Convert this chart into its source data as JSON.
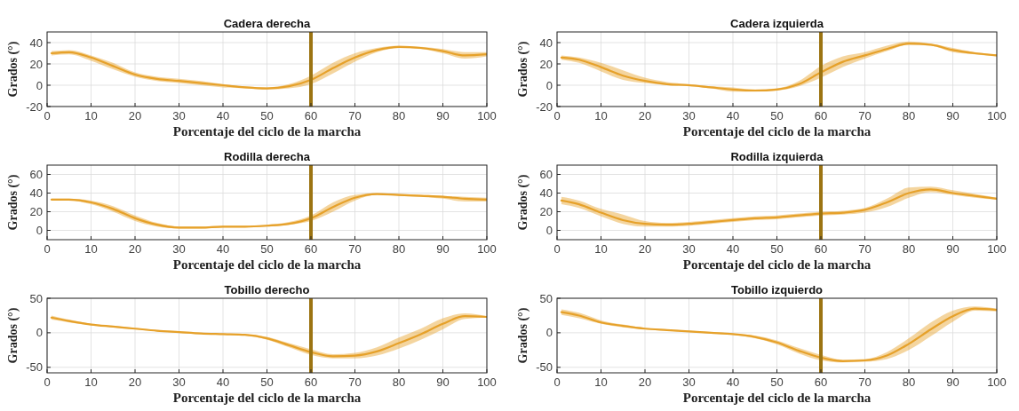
{
  "chart_data": [
    {
      "type": "line",
      "title": "Cadera derecha",
      "xlabel": "Porcentaje del ciclo de la marcha",
      "ylabel": "Grados (°)",
      "xlim": [
        0,
        100
      ],
      "xticks": [
        0,
        10,
        20,
        30,
        40,
        50,
        60,
        70,
        80,
        90,
        100
      ],
      "ylim": [
        -20,
        50
      ],
      "yticks": [
        -20,
        0,
        20,
        40
      ],
      "grid": true,
      "line_style": "solid",
      "ref_lines": [
        {
          "axis": "x",
          "value": 60,
          "color": "#9c7412"
        }
      ],
      "series": [
        {
          "color": "#e6a12a",
          "x": [
            1,
            5,
            10,
            15,
            20,
            25,
            30,
            35,
            40,
            45,
            50,
            55,
            60,
            65,
            70,
            75,
            80,
            85,
            90,
            95,
            100
          ],
          "values": [
            30,
            31,
            26,
            18,
            10,
            6,
            4,
            2,
            0,
            -2,
            -3,
            -1,
            5,
            16,
            26,
            33,
            36,
            35,
            32,
            28,
            29
          ],
          "lower": [
            28,
            29,
            23,
            15,
            8,
            4,
            2,
            0,
            -2,
            -3,
            -4,
            -3,
            1,
            11,
            22,
            31,
            35,
            34,
            30,
            25,
            27
          ],
          "upper": [
            32,
            33,
            28,
            21,
            12,
            8,
            6,
            4,
            1,
            -1,
            -2,
            1,
            9,
            21,
            30,
            35,
            37,
            36,
            34,
            31,
            31
          ]
        }
      ]
    },
    {
      "type": "line",
      "title": "Cadera izquierda",
      "xlabel": "Porcentaje del ciclo de la marcha",
      "ylabel": "Grados (°)",
      "xlim": [
        0,
        100
      ],
      "xticks": [
        0,
        10,
        20,
        30,
        40,
        50,
        60,
        70,
        80,
        90,
        100
      ],
      "ylim": [
        -20,
        50
      ],
      "yticks": [
        -20,
        0,
        20,
        40
      ],
      "grid": true,
      "line_style": "solid",
      "ref_lines": [
        {
          "axis": "x",
          "value": 60,
          "color": "#9c7412"
        }
      ],
      "series": [
        {
          "color": "#e6a12a",
          "x": [
            1,
            5,
            10,
            15,
            20,
            25,
            30,
            35,
            40,
            45,
            50,
            55,
            60,
            65,
            70,
            75,
            80,
            85,
            90,
            95,
            100
          ],
          "values": [
            26,
            24,
            17,
            9,
            4,
            1,
            0,
            -2,
            -4,
            -5,
            -4,
            1,
            12,
            22,
            28,
            34,
            39,
            38,
            33,
            30,
            28
          ],
          "lower": [
            24,
            21,
            13,
            5,
            2,
            0,
            -1,
            -3,
            -6,
            -6,
            -5,
            -1,
            7,
            17,
            25,
            32,
            38,
            37,
            31,
            29,
            27
          ],
          "upper": [
            28,
            26,
            21,
            14,
            7,
            3,
            1,
            -1,
            -2,
            -4,
            -3,
            4,
            18,
            27,
            31,
            37,
            41,
            39,
            35,
            31,
            29
          ]
        }
      ]
    },
    {
      "type": "line",
      "title": "Rodilla derecha",
      "xlabel": "Porcentaje del ciclo de la marcha",
      "ylabel": "Grados (°)",
      "xlim": [
        0,
        100
      ],
      "xticks": [
        0,
        10,
        20,
        30,
        40,
        50,
        60,
        70,
        80,
        90,
        100
      ],
      "ylim": [
        -10,
        70
      ],
      "yticks": [
        0,
        20,
        40,
        60
      ],
      "grid": true,
      "line_style": "solid",
      "ref_lines": [
        {
          "axis": "x",
          "value": 60,
          "color": "#9c7412"
        }
      ],
      "series": [
        {
          "color": "#e6a12a",
          "x": [
            1,
            5,
            10,
            15,
            20,
            25,
            30,
            35,
            40,
            45,
            50,
            55,
            60,
            65,
            70,
            75,
            80,
            85,
            90,
            95,
            100
          ],
          "values": [
            33,
            33,
            30,
            23,
            13,
            6,
            3,
            3,
            4,
            4,
            5,
            7,
            13,
            25,
            35,
            39,
            38,
            37,
            36,
            34,
            33
          ],
          "lower": [
            32,
            32,
            28,
            20,
            10,
            4,
            2,
            2,
            3,
            3,
            4,
            6,
            10,
            20,
            32,
            38,
            37,
            36,
            34,
            31,
            31
          ],
          "upper": [
            34,
            34,
            32,
            26,
            16,
            8,
            4,
            4,
            5,
            5,
            6,
            9,
            16,
            30,
            38,
            40,
            39,
            38,
            37,
            36,
            35
          ]
        }
      ]
    },
    {
      "type": "line",
      "title": "Rodilla izquierda",
      "xlabel": "Porcentaje del ciclo de la marcha",
      "ylabel": "Grados (°)",
      "xlim": [
        0,
        100
      ],
      "xticks": [
        0,
        10,
        20,
        30,
        40,
        50,
        60,
        70,
        80,
        90,
        100
      ],
      "ylim": [
        -10,
        70
      ],
      "yticks": [
        0,
        20,
        40,
        60
      ],
      "grid": true,
      "line_style": "solid",
      "ref_lines": [
        {
          "axis": "x",
          "value": 60,
          "color": "#9c7412"
        }
      ],
      "series": [
        {
          "color": "#e6a12a",
          "x": [
            1,
            5,
            10,
            15,
            20,
            25,
            30,
            35,
            40,
            45,
            50,
            55,
            60,
            65,
            70,
            75,
            80,
            85,
            90,
            95,
            100
          ],
          "values": [
            32,
            28,
            19,
            11,
            7,
            6,
            7,
            9,
            11,
            13,
            14,
            16,
            18,
            19,
            22,
            30,
            40,
            44,
            40,
            37,
            34
          ],
          "lower": [
            28,
            24,
            15,
            7,
            4,
            4,
            5,
            7,
            9,
            11,
            12,
            14,
            16,
            17,
            19,
            25,
            35,
            41,
            38,
            35,
            33
          ],
          "upper": [
            36,
            32,
            23,
            17,
            10,
            8,
            9,
            11,
            13,
            15,
            16,
            18,
            20,
            21,
            24,
            34,
            46,
            47,
            43,
            39,
            35
          ]
        }
      ]
    },
    {
      "type": "line",
      "title": "Tobillo derecho",
      "xlabel": "Porcentaje del ciclo de la marcha",
      "ylabel": "Grados (°)",
      "xlim": [
        0,
        100
      ],
      "xticks": [
        0,
        10,
        20,
        30,
        40,
        50,
        60,
        70,
        80,
        90,
        100
      ],
      "ylim": [
        -58,
        50
      ],
      "yticks": [
        -50,
        0,
        50
      ],
      "grid": true,
      "line_style": "solid",
      "ref_lines": [
        {
          "axis": "x",
          "value": 60,
          "color": "#9c7412"
        }
      ],
      "series": [
        {
          "color": "#e6a12a",
          "x": [
            1,
            5,
            10,
            15,
            20,
            25,
            30,
            35,
            40,
            45,
            50,
            55,
            60,
            65,
            70,
            75,
            80,
            85,
            90,
            95,
            100
          ],
          "values": [
            22,
            17,
            12,
            9,
            6,
            3,
            1,
            -1,
            -2,
            -3,
            -8,
            -18,
            -28,
            -34,
            -33,
            -27,
            -15,
            -2,
            13,
            24,
            23
          ],
          "lower": [
            19,
            15,
            11,
            8,
            5,
            2,
            0,
            -2,
            -3,
            -4,
            -10,
            -21,
            -32,
            -37,
            -37,
            -33,
            -23,
            -10,
            5,
            20,
            22
          ],
          "upper": [
            25,
            19,
            13,
            10,
            7,
            4,
            2,
            0,
            -1,
            -2,
            -6,
            -15,
            -24,
            -31,
            -29,
            -21,
            -7,
            6,
            21,
            28,
            24
          ]
        }
      ]
    },
    {
      "type": "line",
      "title": "Tobillo izquierdo",
      "xlabel": "Porcentaje del ciclo de la marcha",
      "ylabel": "Grados (°)",
      "xlim": [
        0,
        100
      ],
      "xticks": [
        0,
        10,
        20,
        30,
        40,
        50,
        60,
        70,
        80,
        90,
        100
      ],
      "ylim": [
        -58,
        50
      ],
      "yticks": [
        -50,
        0,
        50
      ],
      "grid": true,
      "line_style": "solid",
      "ref_lines": [
        {
          "axis": "x",
          "value": 60,
          "color": "#9c7412"
        }
      ],
      "series": [
        {
          "color": "#e6a12a",
          "x": [
            1,
            5,
            10,
            15,
            20,
            25,
            30,
            35,
            40,
            45,
            50,
            55,
            60,
            65,
            70,
            75,
            80,
            85,
            90,
            95,
            100
          ],
          "values": [
            30,
            25,
            15,
            10,
            6,
            4,
            2,
            0,
            -2,
            -6,
            -14,
            -26,
            -36,
            -41,
            -40,
            -33,
            -16,
            5,
            24,
            35,
            33
          ],
          "lower": [
            26,
            21,
            13,
            8,
            5,
            3,
            1,
            -1,
            -3,
            -8,
            -17,
            -30,
            -40,
            -43,
            -42,
            -38,
            -25,
            -5,
            16,
            32,
            31
          ],
          "upper": [
            34,
            29,
            18,
            12,
            7,
            5,
            3,
            1,
            -1,
            -4,
            -11,
            -22,
            -32,
            -39,
            -38,
            -28,
            -8,
            15,
            32,
            38,
            35
          ]
        }
      ]
    }
  ]
}
